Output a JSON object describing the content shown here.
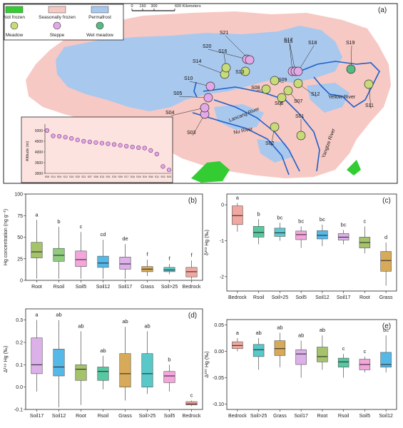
{
  "panel_a": {
    "label": "(a)",
    "legend": {
      "classes": [
        {
          "label": "Not frozen",
          "color": "#33cc33"
        },
        {
          "label": "Seasonally frozen",
          "color": "#f7c9c4"
        },
        {
          "label": "Permafrost",
          "color": "#a9c8ee"
        }
      ],
      "vegetation": [
        {
          "label": "Meadow",
          "color": "#c7dc79"
        },
        {
          "label": "Steppe",
          "color": "#e3a8e8"
        },
        {
          "label": "Wet meadow",
          "color": "#55bb83"
        }
      ]
    },
    "scale": {
      "ticks": [
        "0",
        "150",
        "300",
        "600 Kilometers"
      ]
    },
    "rivers": [
      "Lancang River",
      "Nu River",
      "Yangtze River",
      "Yellow River"
    ],
    "sites": [
      "S01",
      "S02",
      "S03",
      "S04",
      "S05",
      "S06",
      "S07",
      "S08",
      "S09",
      "S10",
      "S11",
      "S12",
      "S13",
      "S14",
      "S15",
      "S16",
      "S17",
      "S18",
      "S19",
      "S20",
      "S21"
    ],
    "inset": {
      "ylabel": "Altitude (m)",
      "yticks": [
        "3000",
        "3500",
        "4000",
        "4500",
        "5000"
      ],
      "ylim": [
        3000,
        5100
      ],
      "x_sites": [
        "S05",
        "S14",
        "S04",
        "S12",
        "S10",
        "S20",
        "S21",
        "S07",
        "S08",
        "S13",
        "S01",
        "S15",
        "S09",
        "S17",
        "S16",
        "S18",
        "S19",
        "S06",
        "S11",
        "S02",
        "S03"
      ],
      "altitudes": [
        5000,
        4750,
        4730,
        4690,
        4630,
        4560,
        4500,
        4470,
        4440,
        4410,
        4380,
        4350,
        4310,
        4270,
        4230,
        4200,
        4180,
        4070,
        3900,
        3320,
        3160
      ]
    }
  },
  "chart_data": [
    {
      "panel": "(b)",
      "type": "box",
      "ylabel": "Hg concentration (ng g⁻¹)",
      "ylim": [
        0,
        100
      ],
      "yticks": [
        "0",
        "25",
        "50",
        "75",
        "100"
      ],
      "categories": [
        "Root",
        "Rsoil",
        "Soil5",
        "Soil12",
        "Soil17",
        "Grass",
        "Soil>25",
        "Bedrock"
      ],
      "letters": [
        "a",
        "b",
        "c",
        "cd",
        "de",
        "f",
        "f",
        "f"
      ],
      "colors": [
        "#a4c36a",
        "#8fcc7e",
        "#f4a6dc",
        "#55b9e8",
        "#dcb0e8",
        "#d7aa5a",
        "#58c8c8",
        "#f0a8a0"
      ],
      "boxes": [
        {
          "min": 2,
          "q1": 26,
          "median": 33,
          "q3": 44,
          "max": 70
        },
        {
          "min": 2,
          "q1": 22,
          "median": 29,
          "q3": 37,
          "max": 62
        },
        {
          "min": 2,
          "q1": 16,
          "median": 24,
          "q3": 34,
          "max": 56
        },
        {
          "min": 2,
          "q1": 15,
          "median": 20,
          "q3": 28,
          "max": 47
        },
        {
          "min": 2,
          "q1": 13,
          "median": 19,
          "q3": 27,
          "max": 42
        },
        {
          "min": 5,
          "q1": 10,
          "median": 13,
          "q3": 16,
          "max": 24
        },
        {
          "min": 7,
          "q1": 10,
          "median": 12,
          "q3": 15,
          "max": 19
        },
        {
          "min": 1,
          "q1": 4,
          "median": 10,
          "q3": 15,
          "max": 23
        }
      ]
    },
    {
      "panel": "(c)",
      "type": "box",
      "ylabel": "δ²⁰² Hg (‰)",
      "ylim": [
        -2.4,
        0.3
      ],
      "yticks": [
        "0",
        "-1",
        "-2"
      ],
      "ytick_values": [
        0,
        -1,
        -2
      ],
      "categories": [
        "Bedrock",
        "Rsoil",
        "Soil>25",
        "Soil5",
        "Soil12",
        "Soil17",
        "Root",
        "Grass"
      ],
      "letters": [
        "a",
        "b",
        "bc",
        "bc",
        "bc",
        "bc",
        "c",
        "d"
      ],
      "colors": [
        "#f0a8a0",
        "#58c8a0",
        "#60c8d0",
        "#f4a6dc",
        "#55b9e8",
        "#dcb0e8",
        "#a4c36a",
        "#d7aa5a"
      ],
      "boxes": [
        {
          "min": -0.75,
          "q1": -0.55,
          "median": -0.3,
          "q3": -0.03,
          "max": 0.05
        },
        {
          "min": -1.1,
          "q1": -0.9,
          "median": -0.77,
          "q3": -0.6,
          "max": -0.4
        },
        {
          "min": -1.0,
          "q1": -0.88,
          "median": -0.78,
          "q3": -0.65,
          "max": -0.5
        },
        {
          "min": -1.2,
          "q1": -0.97,
          "median": -0.83,
          "q3": -0.73,
          "max": -0.6
        },
        {
          "min": -1.15,
          "q1": -0.95,
          "median": -0.85,
          "q3": -0.72,
          "max": -0.55
        },
        {
          "min": -1.1,
          "q1": -0.98,
          "median": -0.9,
          "q3": -0.8,
          "max": -0.7
        },
        {
          "min": -1.35,
          "q1": -1.2,
          "median": -1.05,
          "q3": -0.9,
          "max": -0.6
        },
        {
          "min": -2.25,
          "q1": -1.85,
          "median": -1.55,
          "q3": -1.3,
          "max": -1.05
        }
      ]
    },
    {
      "panel": "(d)",
      "type": "box",
      "ylabel": "Δ¹⁹⁹ Hg (‰)",
      "ylim": [
        -0.1,
        0.35
      ],
      "yticks": [
        "-0.1",
        "0.0",
        "0.1",
        "0.2",
        "0.3"
      ],
      "ytick_values": [
        -0.1,
        0,
        0.1,
        0.2,
        0.3
      ],
      "categories": [
        "Soil17",
        "Soil12",
        "Root",
        "Rsoil",
        "Grass",
        "Soil>25",
        "Soil5",
        "Bedrock"
      ],
      "letters": [
        "a",
        "ab",
        "ab",
        "ab",
        "ab",
        "ab",
        "b",
        "c"
      ],
      "colors": [
        "#dcb0e8",
        "#55b9e8",
        "#a4c36a",
        "#58c8a0",
        "#d7aa5a",
        "#58c8c8",
        "#f4a6dc",
        "#f0a8a0"
      ],
      "boxes": [
        {
          "min": -0.02,
          "q1": 0.06,
          "median": 0.1,
          "q3": 0.22,
          "max": 0.3
        },
        {
          "min": -0.09,
          "q1": 0.05,
          "median": 0.09,
          "q3": 0.17,
          "max": 0.3
        },
        {
          "min": -0.08,
          "q1": 0.03,
          "median": 0.08,
          "q3": 0.1,
          "max": 0.25
        },
        {
          "min": -0.01,
          "q1": 0.03,
          "median": 0.07,
          "q3": 0.09,
          "max": 0.14
        },
        {
          "min": -0.06,
          "q1": 0.0,
          "median": 0.06,
          "q3": 0.15,
          "max": 0.27
        },
        {
          "min": -0.03,
          "q1": 0.0,
          "median": 0.06,
          "q3": 0.15,
          "max": 0.25
        },
        {
          "min": -0.02,
          "q1": 0.02,
          "median": 0.05,
          "q3": 0.07,
          "max": 0.1
        },
        {
          "min": -0.085,
          "q1": -0.08,
          "median": -0.075,
          "q3": -0.065,
          "max": -0.06
        }
      ]
    },
    {
      "panel": "(e)",
      "type": "box",
      "ylabel": "Δ²⁰⁰ Hg (‰)",
      "ylim": [
        -0.11,
        0.06
      ],
      "yticks": [
        "-0.10",
        "-0.05",
        "0.00",
        "0.05"
      ],
      "ytick_values": [
        -0.1,
        -0.05,
        0,
        0.05
      ],
      "categories": [
        "Bedrock",
        "Soil>25",
        "Grass",
        "Soil17",
        "Root",
        "Rsoil",
        "Soil5",
        "Soil12"
      ],
      "letters": [
        "a",
        "ab",
        "ab",
        "ab",
        "ab",
        "c",
        "c",
        "bc"
      ],
      "colors": [
        "#f0a8a0",
        "#58c8c8",
        "#d7aa5a",
        "#dcb0e8",
        "#a4c36a",
        "#58c8a0",
        "#f4a6dc",
        "#55b9e8"
      ],
      "boxes": [
        {
          "min": 0.0,
          "q1": 0.005,
          "median": 0.011,
          "q3": 0.018,
          "max": 0.025
        },
        {
          "min": -0.035,
          "q1": -0.01,
          "median": 0.003,
          "q3": 0.013,
          "max": 0.025
        },
        {
          "min": -0.03,
          "q1": -0.008,
          "median": 0.005,
          "q3": 0.02,
          "max": 0.035
        },
        {
          "min": -0.05,
          "q1": -0.025,
          "median": -0.005,
          "q3": 0.003,
          "max": 0.02
        },
        {
          "min": -0.035,
          "q1": -0.02,
          "median": -0.01,
          "q3": 0.008,
          "max": 0.03
        },
        {
          "min": -0.05,
          "q1": -0.03,
          "median": -0.02,
          "q3": -0.013,
          "max": -0.005
        },
        {
          "min": -0.04,
          "q1": -0.035,
          "median": -0.025,
          "q3": -0.015,
          "max": -0.01
        },
        {
          "min": -0.04,
          "q1": -0.03,
          "median": -0.025,
          "q3": -0.002,
          "max": 0.03
        }
      ]
    }
  ]
}
